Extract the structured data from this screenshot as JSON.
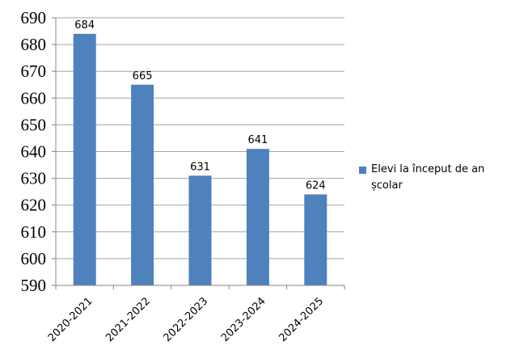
{
  "chart_data": {
    "type": "bar",
    "categories": [
      "2020-2021",
      "2021-2022",
      "2022-2023",
      "2023-2024",
      "2024-2025"
    ],
    "series": [
      {
        "name": "Elevi la început de an școlar",
        "values": [
          684,
          665,
          631,
          641,
          624
        ]
      }
    ],
    "data_labels": [
      "684",
      "665",
      "631",
      "641",
      "624"
    ],
    "ylim": [
      590,
      690
    ],
    "ytick_step": 10,
    "yticks": [
      "590",
      "600",
      "610",
      "620",
      "630",
      "640",
      "650",
      "660",
      "670",
      "680",
      "690"
    ],
    "title": "",
    "xlabel": "",
    "ylabel": "",
    "grid": true,
    "legend_position": "right",
    "colors": {
      "bar": "#4F81BD",
      "grid": "#A6A6A6",
      "axis": "#868686"
    }
  }
}
